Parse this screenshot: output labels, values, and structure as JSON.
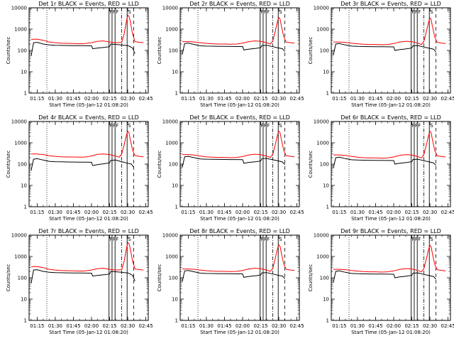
{
  "colors": {
    "events": "#000000",
    "lld": "#ff0000",
    "background": "#ffffff"
  },
  "common": {
    "xlabel": "Start Time (05-Jan-12 01:08:20)",
    "ylabel": "Counts/sec",
    "x_tick_labels": [
      "01:15",
      "01:30",
      "01:45",
      "02:00",
      "02:15",
      "02:30",
      "02:45"
    ],
    "x_tick_minutes": [
      75,
      90,
      105,
      120,
      135,
      150,
      165
    ],
    "xlim_minutes": [
      68.3,
      167
    ],
    "y_tick_labels": [
      "1",
      "10",
      "100",
      "1000",
      "10000"
    ],
    "y_tick_values": [
      1,
      10,
      100,
      1000,
      10000
    ],
    "ylim": [
      1,
      10000
    ],
    "yscale": "log",
    "flag_labels": [
      "F",
      "F",
      "F",
      "S"
    ],
    "flag_minutes": [
      134.5,
      137,
      139.5,
      149.5
    ],
    "dotted_line_minute": 83,
    "dashdot_line_minute": 145,
    "dashed_line_minute": 155
  },
  "chart_data": [
    {
      "type": "line",
      "title": "Det 1r BLACK = Events, RED = LLD",
      "series": [
        {
          "name": "Events",
          "color": "#000000",
          "x": [
            70,
            72,
            75,
            80,
            85,
            90,
            95,
            100,
            105,
            110,
            115,
            120,
            121,
            123,
            125,
            128,
            131,
            135,
            136,
            145,
            147,
            150,
            152,
            154,
            156
          ],
          "y": [
            55,
            230,
            240,
            200,
            180,
            175,
            172,
            170,
            168,
            167,
            166,
            165,
            120,
            125,
            130,
            135,
            140,
            150,
            200,
            180,
            175,
            170,
            150,
            130,
            70
          ]
        },
        {
          "name": "LLD",
          "color": "#ff0000",
          "x": [
            70,
            75,
            80,
            85,
            90,
            95,
            100,
            105,
            110,
            115,
            120,
            125,
            130,
            135,
            140,
            145,
            147,
            149,
            150,
            151,
            152,
            154,
            156,
            158,
            160,
            163
          ],
          "y": [
            330,
            340,
            300,
            250,
            230,
            220,
            215,
            210,
            205,
            210,
            230,
            270,
            280,
            250,
            230,
            240,
            600,
            2500,
            4500,
            4000,
            2500,
            600,
            260,
            250,
            240,
            230
          ]
        }
      ]
    },
    {
      "type": "line",
      "title": "Det 2r BLACK = Events, RED = LLD",
      "series": [
        {
          "name": "Events",
          "color": "#000000",
          "x": [
            70,
            72,
            75,
            80,
            85,
            90,
            95,
            100,
            105,
            110,
            115,
            120,
            121,
            123,
            125,
            128,
            131,
            135,
            136,
            140,
            145,
            150,
            153,
            155
          ],
          "y": [
            65,
            210,
            220,
            190,
            165,
            160,
            158,
            156,
            155,
            154,
            153,
            152,
            105,
            110,
            115,
            120,
            125,
            135,
            170,
            175,
            150,
            130,
            120,
            90
          ]
        },
        {
          "name": "LLD",
          "color": "#ff0000",
          "x": [
            70,
            75,
            80,
            85,
            90,
            95,
            100,
            105,
            110,
            115,
            120,
            125,
            130,
            135,
            140,
            143,
            145,
            147,
            149,
            150,
            151,
            152,
            154,
            156,
            158,
            160,
            163
          ],
          "y": [
            260,
            260,
            250,
            230,
            215,
            205,
            200,
            200,
            195,
            200,
            220,
            260,
            280,
            270,
            230,
            200,
            280,
            800,
            2500,
            3500,
            3000,
            1500,
            450,
            250,
            240,
            230,
            220
          ]
        }
      ]
    },
    {
      "type": "line",
      "title": "Det 3r BLACK = Events, RED = LLD",
      "series": [
        {
          "name": "Events",
          "color": "#000000",
          "x": [
            70,
            72,
            75,
            80,
            85,
            90,
            95,
            100,
            105,
            110,
            115,
            120,
            121,
            123,
            125,
            128,
            131,
            135,
            136,
            140,
            145,
            150,
            153,
            155
          ],
          "y": [
            60,
            200,
            210,
            180,
            160,
            155,
            153,
            151,
            150,
            149,
            148,
            147,
            100,
            105,
            110,
            115,
            120,
            130,
            165,
            170,
            145,
            125,
            115,
            85
          ]
        },
        {
          "name": "LLD",
          "color": "#ff0000",
          "x": [
            70,
            75,
            80,
            85,
            90,
            95,
            100,
            105,
            110,
            115,
            120,
            125,
            130,
            135,
            140,
            143,
            145,
            147,
            149,
            150,
            151,
            152,
            154,
            156,
            158,
            160,
            163
          ],
          "y": [
            250,
            250,
            240,
            220,
            205,
            195,
            190,
            190,
            185,
            190,
            210,
            250,
            270,
            260,
            220,
            190,
            270,
            750,
            2300,
            3300,
            2800,
            1400,
            420,
            240,
            230,
            220,
            210
          ]
        }
      ]
    },
    {
      "type": "line",
      "title": "Det 4r BLACK = Events, RED = LLD",
      "series": [
        {
          "name": "Events",
          "color": "#000000",
          "x": [
            70,
            72,
            75,
            80,
            85,
            90,
            95,
            100,
            105,
            110,
            115,
            120,
            121,
            123,
            125,
            128,
            131,
            135,
            136,
            140,
            145,
            150,
            153,
            155
          ],
          "y": [
            50,
            170,
            180,
            155,
            135,
            130,
            128,
            126,
            125,
            124,
            123,
            122,
            85,
            90,
            95,
            100,
            105,
            115,
            150,
            155,
            130,
            110,
            100,
            70
          ]
        },
        {
          "name": "LLD",
          "color": "#ff0000",
          "x": [
            70,
            75,
            80,
            85,
            90,
            95,
            100,
            105,
            110,
            115,
            120,
            125,
            130,
            135,
            140,
            143,
            145,
            147,
            149,
            150,
            151,
            152,
            154,
            156,
            158,
            160,
            163
          ],
          "y": [
            300,
            300,
            280,
            250,
            230,
            220,
            215,
            215,
            210,
            215,
            240,
            290,
            300,
            280,
            240,
            210,
            300,
            800,
            2400,
            3500,
            3000,
            1500,
            450,
            250,
            240,
            230,
            220
          ]
        }
      ]
    },
    {
      "type": "line",
      "title": "Det 5r BLACK = Events, RED = LLD",
      "series": [
        {
          "name": "Events",
          "color": "#000000",
          "x": [
            70,
            72,
            75,
            80,
            85,
            90,
            95,
            100,
            105,
            110,
            115,
            120,
            121,
            123,
            125,
            128,
            131,
            135,
            136,
            140,
            145,
            150,
            153,
            155
          ],
          "y": [
            70,
            220,
            230,
            200,
            175,
            170,
            168,
            166,
            165,
            164,
            163,
            162,
            110,
            115,
            120,
            125,
            130,
            140,
            180,
            185,
            160,
            140,
            125,
            95
          ]
        },
        {
          "name": "LLD",
          "color": "#ff0000",
          "x": [
            70,
            75,
            80,
            85,
            90,
            95,
            100,
            105,
            110,
            115,
            120,
            125,
            130,
            135,
            140,
            143,
            145,
            147,
            149,
            150,
            151,
            152,
            154,
            156,
            158,
            160,
            163
          ],
          "y": [
            280,
            280,
            265,
            240,
            220,
            210,
            205,
            205,
            200,
            205,
            225,
            270,
            290,
            275,
            235,
            205,
            290,
            800,
            2500,
            3500,
            3000,
            1500,
            450,
            250,
            240,
            230,
            220
          ]
        }
      ]
    },
    {
      "type": "line",
      "title": "Det 6r BLACK = Events, RED = LLD",
      "series": [
        {
          "name": "Events",
          "color": "#000000",
          "x": [
            70,
            72,
            75,
            80,
            85,
            90,
            95,
            100,
            105,
            110,
            115,
            120,
            121,
            123,
            125,
            128,
            131,
            135,
            136,
            140,
            145,
            150,
            153,
            155
          ],
          "y": [
            65,
            200,
            210,
            180,
            160,
            155,
            153,
            151,
            150,
            149,
            148,
            147,
            100,
            105,
            110,
            115,
            120,
            130,
            165,
            170,
            145,
            125,
            115,
            85
          ]
        },
        {
          "name": "LLD",
          "color": "#ff0000",
          "x": [
            70,
            75,
            80,
            85,
            90,
            95,
            100,
            105,
            110,
            115,
            120,
            125,
            130,
            135,
            140,
            143,
            145,
            147,
            149,
            150,
            151,
            152,
            154,
            156,
            158,
            160,
            163
          ],
          "y": [
            270,
            270,
            255,
            230,
            210,
            200,
            195,
            195,
            190,
            195,
            215,
            260,
            280,
            265,
            225,
            195,
            280,
            780,
            2400,
            3400,
            2900,
            1450,
            430,
            245,
            235,
            225,
            215
          ]
        }
      ]
    },
    {
      "type": "line",
      "title": "Det 7r BLACK = Events, RED = LLD",
      "series": [
        {
          "name": "Events",
          "color": "#000000",
          "x": [
            70,
            72,
            75,
            80,
            85,
            90,
            95,
            100,
            105,
            110,
            115,
            120,
            121,
            123,
            125,
            128,
            131,
            135,
            136,
            145,
            147,
            150,
            152,
            154,
            156
          ],
          "y": [
            55,
            230,
            240,
            200,
            180,
            175,
            172,
            170,
            168,
            167,
            166,
            165,
            120,
            125,
            130,
            135,
            140,
            150,
            200,
            180,
            175,
            170,
            150,
            130,
            70
          ]
        },
        {
          "name": "LLD",
          "color": "#ff0000",
          "x": [
            70,
            75,
            80,
            85,
            90,
            95,
            100,
            105,
            110,
            115,
            120,
            125,
            130,
            135,
            140,
            145,
            147,
            149,
            150,
            151,
            152,
            154,
            156,
            158,
            160,
            163
          ],
          "y": [
            330,
            340,
            300,
            250,
            230,
            220,
            215,
            210,
            205,
            210,
            230,
            270,
            280,
            250,
            230,
            240,
            600,
            2500,
            4500,
            4000,
            2500,
            600,
            260,
            250,
            240,
            230
          ]
        }
      ]
    },
    {
      "type": "line",
      "title": "Det 8r BLACK = Events, RED = LLD",
      "series": [
        {
          "name": "Events",
          "color": "#000000",
          "x": [
            70,
            72,
            75,
            80,
            85,
            90,
            95,
            100,
            105,
            110,
            115,
            120,
            121,
            123,
            125,
            128,
            131,
            135,
            136,
            140,
            145,
            150,
            153,
            155
          ],
          "y": [
            65,
            210,
            220,
            190,
            165,
            160,
            158,
            156,
            155,
            154,
            153,
            152,
            105,
            110,
            115,
            120,
            125,
            135,
            170,
            175,
            150,
            130,
            120,
            90
          ]
        },
        {
          "name": "LLD",
          "color": "#ff0000",
          "x": [
            70,
            75,
            80,
            85,
            90,
            95,
            100,
            105,
            110,
            115,
            120,
            125,
            130,
            135,
            140,
            143,
            145,
            147,
            149,
            150,
            151,
            152,
            154,
            156,
            158,
            160,
            163
          ],
          "y": [
            260,
            260,
            250,
            230,
            215,
            205,
            200,
            200,
            195,
            200,
            220,
            260,
            280,
            270,
            230,
            200,
            280,
            800,
            2500,
            3500,
            3000,
            1500,
            450,
            250,
            240,
            230,
            220
          ]
        }
      ]
    },
    {
      "type": "line",
      "title": "Det 9r BLACK = Events, RED = LLD",
      "series": [
        {
          "name": "Events",
          "color": "#000000",
          "x": [
            70,
            72,
            75,
            80,
            85,
            90,
            95,
            100,
            105,
            110,
            115,
            120,
            121,
            123,
            125,
            128,
            131,
            135,
            136,
            140,
            145,
            150,
            153,
            155
          ],
          "y": [
            60,
            200,
            210,
            180,
            160,
            155,
            153,
            151,
            150,
            149,
            148,
            147,
            100,
            105,
            110,
            115,
            120,
            130,
            165,
            170,
            145,
            125,
            115,
            85
          ]
        },
        {
          "name": "LLD",
          "color": "#ff0000",
          "x": [
            70,
            75,
            80,
            85,
            90,
            95,
            100,
            105,
            110,
            115,
            120,
            125,
            130,
            135,
            140,
            143,
            145,
            147,
            149,
            150,
            151,
            152,
            154,
            156,
            158,
            160,
            163
          ],
          "y": [
            250,
            250,
            240,
            220,
            205,
            195,
            190,
            190,
            185,
            190,
            210,
            250,
            270,
            260,
            220,
            190,
            270,
            750,
            2300,
            3300,
            2800,
            1400,
            420,
            240,
            230,
            220,
            210
          ]
        }
      ]
    }
  ]
}
